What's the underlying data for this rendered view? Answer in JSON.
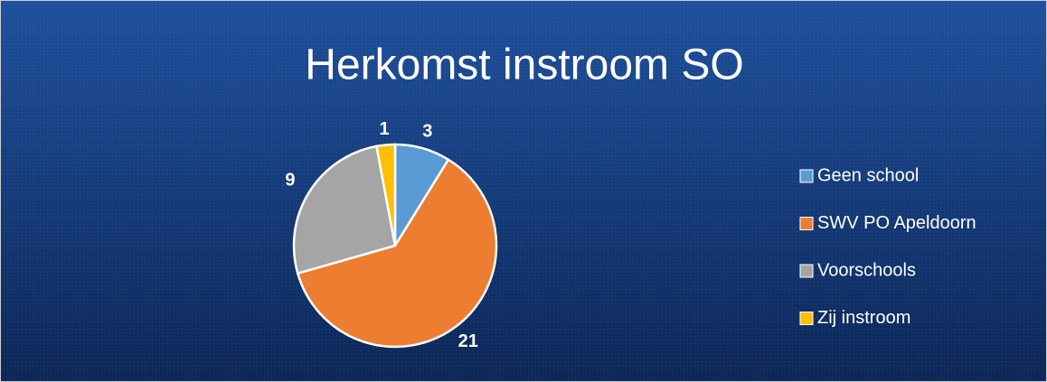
{
  "chart_data": {
    "type": "pie",
    "title": "Herkomst instroom SO",
    "categories": [
      "Geen school",
      "SWV PO Apeldoorn",
      "Voorschools",
      "Zij instroom"
    ],
    "values": [
      3,
      21,
      9,
      1
    ],
    "colors": [
      "#5b9bd5",
      "#ed7d31",
      "#a5a5a5",
      "#ffc000"
    ],
    "legend": "right"
  }
}
